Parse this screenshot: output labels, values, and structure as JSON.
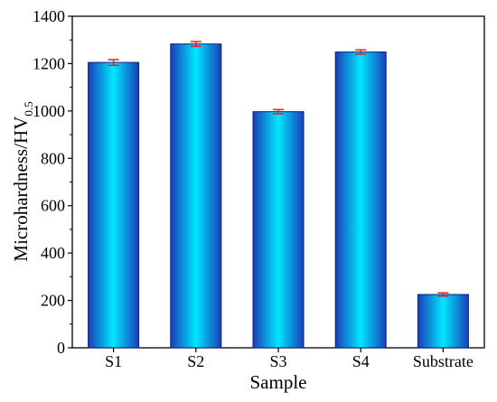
{
  "chart_data": {
    "type": "bar",
    "categories": [
      "S1",
      "S2",
      "S3",
      "S4",
      "Substrate"
    ],
    "values": [
      1205,
      1283,
      997,
      1249,
      225
    ],
    "errors": [
      12,
      10,
      9,
      9,
      7
    ],
    "xlabel": "Sample",
    "ylabel_main": "Microhardness/HV",
    "ylabel_sub": "0.5",
    "ylim": [
      0,
      1400
    ],
    "yticks": [
      0,
      200,
      400,
      600,
      800,
      1000,
      1200,
      1400
    ],
    "bar_colors": {
      "edge": "#1a3fb8",
      "mid": "#00e8ff",
      "outline": "#0a1f7a"
    },
    "error_color": "#e0202a",
    "grid": false,
    "legend": "none"
  }
}
